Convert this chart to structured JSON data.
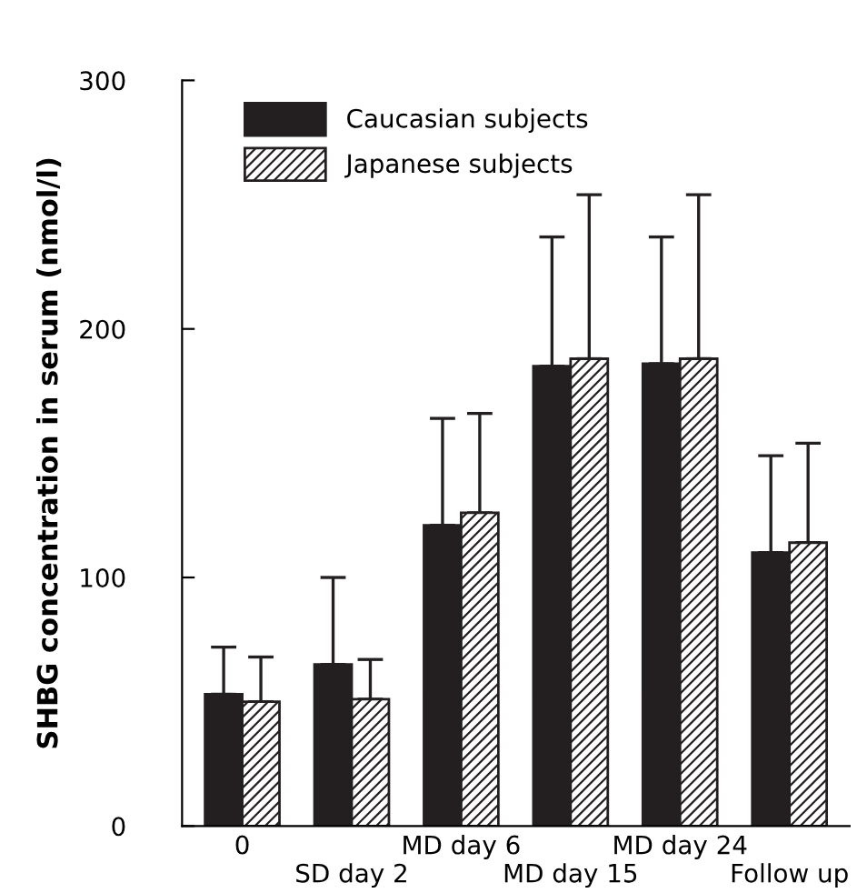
{
  "chart_data": {
    "type": "bar",
    "ylabel": "SHBG concentration in serum (nmol/l)",
    "categories": [
      "0",
      "SD day 2",
      "MD day 6",
      "MD day 15",
      "MD day 24",
      "Follow up"
    ],
    "series": [
      {
        "name": "Caucasian subjects",
        "color": "#231f20",
        "values": [
          53,
          65,
          121,
          185,
          186,
          110
        ],
        "errors": [
          [
            53,
            72
          ],
          [
            65,
            100
          ],
          [
            121,
            164
          ],
          [
            185,
            237
          ],
          [
            186,
            237
          ],
          [
            110,
            149
          ]
        ]
      },
      {
        "name": "Japanese subjects",
        "color": "#231f20",
        "values": [
          50,
          51,
          126,
          188,
          188,
          114
        ],
        "errors": [
          [
            50,
            68
          ],
          [
            51,
            67
          ],
          [
            126,
            166
          ],
          [
            188,
            254
          ],
          [
            188,
            254
          ],
          [
            114,
            154
          ]
        ]
      }
    ],
    "ylim": [
      0,
      300
    ],
    "yticks": [
      0,
      100,
      200,
      300
    ],
    "grid": false,
    "legend": "top left"
  }
}
